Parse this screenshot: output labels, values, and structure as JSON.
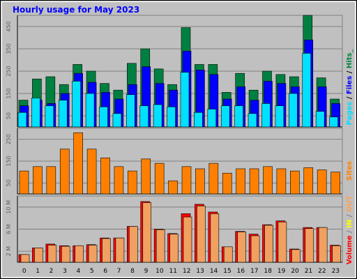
{
  "colors": {
    "background": "#c0c0c0",
    "plot_bg": "#c0c0c0",
    "title": "#0000ff",
    "hits": "#008040",
    "files": "#0000ff",
    "pages": "#00e0ff",
    "sites": "#ff8000",
    "volume": "#ff0000",
    "in": "#ffff00",
    "out": "#ffa050",
    "out_fill": "#f0a060"
  },
  "chart_data": {
    "type": "bar",
    "title": "Hourly usage for May 2023",
    "categories": [
      "0",
      "1",
      "2",
      "3",
      "4",
      "5",
      "6",
      "7",
      "8",
      "9",
      "10",
      "11",
      "12",
      "13",
      "14",
      "15",
      "16",
      "17",
      "18",
      "19",
      "20",
      "21",
      "22",
      "23"
    ],
    "panels": [
      {
        "name": "top",
        "legend": [
          "Pages",
          " / ",
          "Files",
          " / ",
          "Hits",
          "_"
        ],
        "ticks": [
          "50",
          "150",
          "250",
          "350",
          "450"
        ],
        "tick_values": [
          50,
          150,
          250,
          350,
          450
        ],
        "ylim": [
          0,
          500
        ],
        "series": [
          {
            "name": "Hits",
            "values": [
              120,
              215,
              225,
              190,
              280,
              250,
              195,
              165,
              285,
              350,
              260,
              190,
              445,
              280,
              280,
              155,
              240,
              165,
              250,
              235,
              225,
              510,
              220,
              125
            ]
          },
          {
            "name": "Files",
            "values": [
              95,
              120,
              105,
              150,
              240,
              200,
              155,
              125,
              190,
              270,
              195,
              165,
              340,
              255,
              235,
              125,
              180,
              120,
              205,
              195,
              180,
              390,
              180,
              105
            ]
          },
          {
            "name": "Pages",
            "values": [
              65,
              130,
              95,
              120,
              205,
              150,
              90,
              60,
              145,
              95,
              100,
              90,
              245,
              65,
              80,
              95,
              95,
              60,
              105,
              95,
              150,
              330,
              70,
              45
            ]
          }
        ]
      },
      {
        "name": "middle",
        "legend": [
          "Sites"
        ],
        "ticks": [
          "50",
          "150",
          "250"
        ],
        "tick_values": [
          50,
          150,
          250
        ],
        "ylim": [
          0,
          300
        ],
        "series": [
          {
            "name": "Sites",
            "values": [
              105,
              125,
              125,
              205,
              280,
              205,
              165,
              125,
              105,
              160,
              140,
              60,
              125,
              115,
              140,
              95,
              115,
              115,
              125,
              115,
              105,
              120,
              110,
              100
            ]
          }
        ]
      },
      {
        "name": "bottom",
        "legend": [
          "Volume",
          " / ",
          "IN",
          " / ",
          "OUT"
        ],
        "ticks": [
          "2 M",
          "6 M",
          "10 M"
        ],
        "tick_values": [
          2,
          6,
          10
        ],
        "ylim": [
          0,
          12
        ],
        "series": [
          {
            "name": "Volume",
            "values": [
              1.4,
              2.6,
              3.3,
              3.0,
              3.0,
              3.2,
              4.4,
              4.4,
              6.5,
              11.0,
              6.0,
              5.2,
              8.8,
              10.5,
              9.1,
              2.8,
              5.6,
              5.1,
              6.8,
              7.5,
              2.4,
              6.3,
              6.3,
              3.1
            ]
          },
          {
            "name": "OUT",
            "values": [
              1.4,
              2.6,
              3.1,
              2.9,
              3.0,
              3.1,
              4.3,
              4.4,
              6.5,
              10.8,
              5.9,
              5.1,
              8.2,
              10.2,
              8.8,
              2.8,
              5.5,
              4.8,
              6.7,
              7.3,
              2.3,
              6.1,
              6.3,
              3.0
            ]
          }
        ]
      }
    ]
  }
}
